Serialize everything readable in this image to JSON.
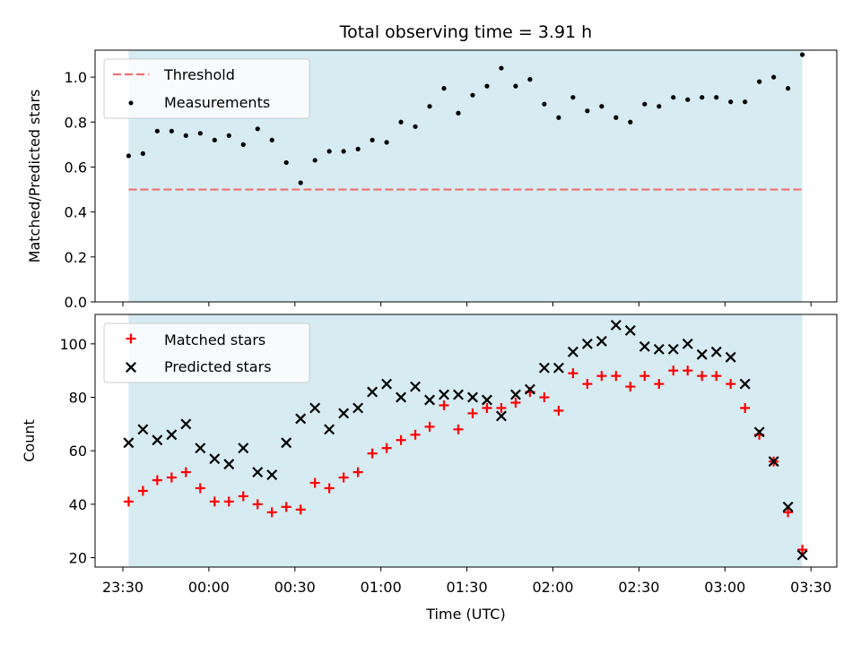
{
  "chart_data": [
    {
      "type": "scatter",
      "title": "Total observing time = 3.91 h",
      "xlabel": "",
      "ylabel": "Matched/Predicted stars",
      "ylim": [
        0,
        1.12
      ],
      "yticks": [
        "0.0",
        "0.2",
        "0.4",
        "0.6",
        "0.8",
        "1.0"
      ],
      "legend_position": "top-left",
      "shaded_span": [
        "23:32",
        "03:27"
      ],
      "threshold": {
        "name": "Threshold",
        "value": 0.5,
        "color": "#f07070"
      },
      "series": [
        {
          "name": "Measurements",
          "color": "#000000",
          "x": [
            "23:32",
            "23:37",
            "23:42",
            "23:47",
            "23:52",
            "23:57",
            "00:02",
            "00:07",
            "00:12",
            "00:17",
            "00:22",
            "00:27",
            "00:32",
            "00:37",
            "00:42",
            "00:47",
            "00:52",
            "00:57",
            "01:02",
            "01:07",
            "01:12",
            "01:17",
            "01:22",
            "01:27",
            "01:32",
            "01:37",
            "01:42",
            "01:47",
            "01:52",
            "01:57",
            "02:02",
            "02:07",
            "02:12",
            "02:17",
            "02:22",
            "02:27",
            "02:32",
            "02:37",
            "02:42",
            "02:47",
            "02:52",
            "02:57",
            "03:02",
            "03:07",
            "03:12",
            "03:17",
            "03:22",
            "03:27"
          ],
          "y": [
            0.65,
            0.66,
            0.76,
            0.76,
            0.74,
            0.75,
            0.72,
            0.74,
            0.7,
            0.77,
            0.72,
            0.62,
            0.53,
            0.63,
            0.67,
            0.67,
            0.68,
            0.72,
            0.71,
            0.8,
            0.78,
            0.87,
            0.95,
            0.84,
            0.92,
            0.96,
            1.04,
            0.96,
            0.99,
            0.88,
            0.82,
            0.91,
            0.85,
            0.87,
            0.82,
            0.8,
            0.88,
            0.87,
            0.91,
            0.9,
            0.91,
            0.91,
            0.89,
            0.89,
            0.98,
            1.0,
            0.95,
            1.1
          ]
        }
      ]
    },
    {
      "type": "scatter",
      "title": "",
      "xlabel": "Time (UTC)",
      "ylabel": "Count",
      "ylim": [
        16.5,
        111
      ],
      "yticks": [
        "20",
        "40",
        "60",
        "80",
        "100"
      ],
      "xticks": [
        "23:30",
        "00:00",
        "00:30",
        "01:00",
        "01:30",
        "02:00",
        "02:30",
        "03:00",
        "03:30"
      ],
      "legend_position": "top-left",
      "shaded_span": [
        "23:32",
        "03:27"
      ],
      "series": [
        {
          "name": "Matched stars",
          "color": "#ff0000",
          "marker": "plus",
          "x": [
            "23:32",
            "23:37",
            "23:42",
            "23:47",
            "23:52",
            "23:57",
            "00:02",
            "00:07",
            "00:12",
            "00:17",
            "00:22",
            "00:27",
            "00:32",
            "00:37",
            "00:42",
            "00:47",
            "00:52",
            "00:57",
            "01:02",
            "01:07",
            "01:12",
            "01:17",
            "01:22",
            "01:27",
            "01:32",
            "01:37",
            "01:42",
            "01:47",
            "01:52",
            "01:57",
            "02:02",
            "02:07",
            "02:12",
            "02:17",
            "02:22",
            "02:27",
            "02:32",
            "02:37",
            "02:42",
            "02:47",
            "02:52",
            "02:57",
            "03:02",
            "03:07",
            "03:12",
            "03:17",
            "03:22",
            "03:27"
          ],
          "y": [
            41,
            45,
            49,
            50,
            52,
            46,
            41,
            41,
            43,
            40,
            37,
            39,
            38,
            48,
            46,
            50,
            52,
            59,
            61,
            64,
            66,
            69,
            77,
            68,
            74,
            76,
            76,
            78,
            82,
            80,
            75,
            89,
            85,
            88,
            88,
            84,
            88,
            85,
            90,
            90,
            88,
            88,
            85,
            76,
            66,
            56,
            37,
            23
          ]
        },
        {
          "name": "Predicted stars",
          "color": "#000000",
          "marker": "x",
          "x": [
            "23:32",
            "23:37",
            "23:42",
            "23:47",
            "23:52",
            "23:57",
            "00:02",
            "00:07",
            "00:12",
            "00:17",
            "00:22",
            "00:27",
            "00:32",
            "00:37",
            "00:42",
            "00:47",
            "00:52",
            "00:57",
            "01:02",
            "01:07",
            "01:12",
            "01:17",
            "01:22",
            "01:27",
            "01:32",
            "01:37",
            "01:42",
            "01:47",
            "01:52",
            "01:57",
            "02:02",
            "02:07",
            "02:12",
            "02:17",
            "02:22",
            "02:27",
            "02:32",
            "02:37",
            "02:42",
            "02:47",
            "02:52",
            "02:57",
            "03:02",
            "03:07",
            "03:12",
            "03:17",
            "03:22",
            "03:27"
          ],
          "y": [
            63,
            68,
            64,
            66,
            70,
            61,
            57,
            55,
            61,
            52,
            51,
            63,
            72,
            76,
            68,
            74,
            76,
            82,
            85,
            80,
            84,
            79,
            81,
            81,
            80,
            79,
            73,
            81,
            83,
            91,
            91,
            97,
            100,
            101,
            107,
            105,
            99,
            98,
            98,
            100,
            96,
            97,
            95,
            85,
            67,
            56,
            39,
            21
          ]
        }
      ]
    }
  ]
}
